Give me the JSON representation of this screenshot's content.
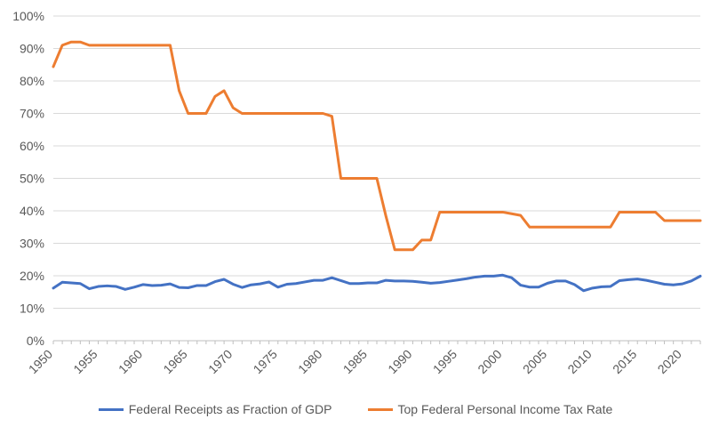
{
  "chart_data": {
    "type": "line",
    "title": "",
    "xlabel": "",
    "ylabel": "",
    "xlim": [
      1950,
      2022
    ],
    "ylim": [
      0,
      100
    ],
    "y_ticks": [
      "0%",
      "10%",
      "20%",
      "30%",
      "40%",
      "50%",
      "60%",
      "70%",
      "80%",
      "90%",
      "100%"
    ],
    "x_ticks": [
      "1950",
      "1955",
      "1960",
      "1965",
      "1970",
      "1975",
      "1980",
      "1985",
      "1990",
      "1995",
      "2000",
      "2005",
      "2010",
      "2015",
      "2020"
    ],
    "grid": "horizontal",
    "legend_position": "bottom",
    "series": [
      {
        "name": "Federal Receipts as Fraction of GDP",
        "color": "#4472C4",
        "x": [
          1950,
          1951,
          1952,
          1953,
          1954,
          1955,
          1956,
          1957,
          1958,
          1959,
          1960,
          1961,
          1962,
          1963,
          1964,
          1965,
          1966,
          1967,
          1968,
          1969,
          1970,
          1971,
          1972,
          1973,
          1974,
          1975,
          1976,
          1977,
          1978,
          1979,
          1980,
          1981,
          1982,
          1983,
          1984,
          1985,
          1986,
          1987,
          1988,
          1989,
          1990,
          1991,
          1992,
          1993,
          1994,
          1995,
          1996,
          1997,
          1998,
          1999,
          2000,
          2001,
          2002,
          2003,
          2004,
          2005,
          2006,
          2007,
          2008,
          2009,
          2010,
          2011,
          2012,
          2013,
          2014,
          2015,
          2016,
          2017,
          2018,
          2019,
          2020,
          2021,
          2022
        ],
        "values": [
          16.2,
          18.0,
          17.8,
          17.6,
          16.0,
          16.7,
          16.9,
          16.7,
          15.8,
          16.5,
          17.3,
          17.0,
          17.1,
          17.5,
          16.4,
          16.3,
          17.0,
          17.0,
          18.2,
          18.9,
          17.4,
          16.4,
          17.2,
          17.5,
          18.1,
          16.5,
          17.4,
          17.6,
          18.1,
          18.6,
          18.6,
          19.4,
          18.5,
          17.6,
          17.6,
          17.8,
          17.8,
          18.6,
          18.4,
          18.4,
          18.3,
          18.0,
          17.7,
          17.9,
          18.3,
          18.7,
          19.1,
          19.6,
          19.9,
          19.9,
          20.2,
          19.4,
          17.1,
          16.5,
          16.5,
          17.7,
          18.4,
          18.4,
          17.3,
          15.4,
          16.2,
          16.6,
          16.7,
          18.5,
          18.8,
          19.0,
          18.6,
          18.0,
          17.4,
          17.2,
          17.5,
          18.4,
          19.9
        ]
      },
      {
        "name": "Top Federal Personal Income Tax Rate",
        "color": "#ED7D31",
        "x": [
          1950,
          1951,
          1952,
          1953,
          1954,
          1955,
          1956,
          1957,
          1958,
          1959,
          1960,
          1961,
          1962,
          1963,
          1964,
          1965,
          1966,
          1967,
          1968,
          1969,
          1970,
          1971,
          1972,
          1973,
          1974,
          1975,
          1976,
          1977,
          1978,
          1979,
          1980,
          1981,
          1982,
          1983,
          1984,
          1985,
          1986,
          1987,
          1988,
          1989,
          1990,
          1991,
          1992,
          1993,
          1994,
          1995,
          1996,
          1997,
          1998,
          1999,
          2000,
          2001,
          2002,
          2003,
          2004,
          2005,
          2006,
          2007,
          2008,
          2009,
          2010,
          2011,
          2012,
          2013,
          2014,
          2015,
          2016,
          2017,
          2018,
          2019,
          2020,
          2021,
          2022
        ],
        "values": [
          84.4,
          91,
          92,
          92,
          91,
          91,
          91,
          91,
          91,
          91,
          91,
          91,
          91,
          91,
          77,
          70,
          70,
          70,
          75.25,
          77,
          71.75,
          70,
          70,
          70,
          70,
          70,
          70,
          70,
          70,
          70,
          70,
          69.13,
          50,
          50,
          50,
          50,
          50,
          38.5,
          28,
          28,
          28,
          31,
          31,
          39.6,
          39.6,
          39.6,
          39.6,
          39.6,
          39.6,
          39.6,
          39.6,
          39.1,
          38.6,
          35,
          35,
          35,
          35,
          35,
          35,
          35,
          35,
          35,
          35,
          39.6,
          39.6,
          39.6,
          39.6,
          39.6,
          37,
          37,
          37,
          37,
          37
        ]
      }
    ]
  }
}
